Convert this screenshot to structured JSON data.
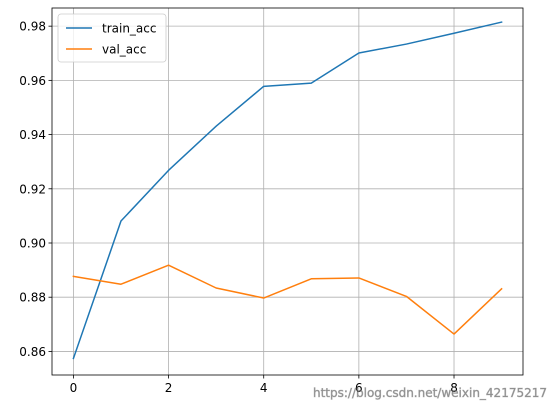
{
  "chart_data": {
    "type": "line",
    "title": "",
    "xlabel": "",
    "ylabel": "",
    "xlim": [
      -0.45,
      9.45
    ],
    "ylim": [
      0.8513,
      0.9867
    ],
    "grid": true,
    "legend_position": "top-left",
    "x": [
      0,
      1,
      2,
      3,
      4,
      5,
      6,
      7,
      8,
      9
    ],
    "x_ticks": [
      0,
      2,
      4,
      6,
      8
    ],
    "x_tick_labels": [
      "0",
      "2",
      "4",
      "6",
      "8"
    ],
    "y_ticks": [
      0.86,
      0.88,
      0.9,
      0.92,
      0.94,
      0.96,
      0.98
    ],
    "y_tick_labels": [
      "0.86",
      "0.88",
      "0.90",
      "0.92",
      "0.94",
      "0.96",
      "0.98"
    ],
    "series": [
      {
        "name": "train_acc",
        "color": "#1f77b4",
        "values": [
          0.8574,
          0.9081,
          0.9268,
          0.9431,
          0.9578,
          0.959,
          0.9701,
          0.9734,
          0.9774,
          0.9815
        ]
      },
      {
        "name": "val_acc",
        "color": "#ff7f0e",
        "values": [
          0.8877,
          0.8848,
          0.8918,
          0.8834,
          0.8797,
          0.8868,
          0.8871,
          0.8803,
          0.8664,
          0.8831
        ]
      }
    ]
  },
  "watermark": "https://blog.csdn.net/weixin_42175217"
}
